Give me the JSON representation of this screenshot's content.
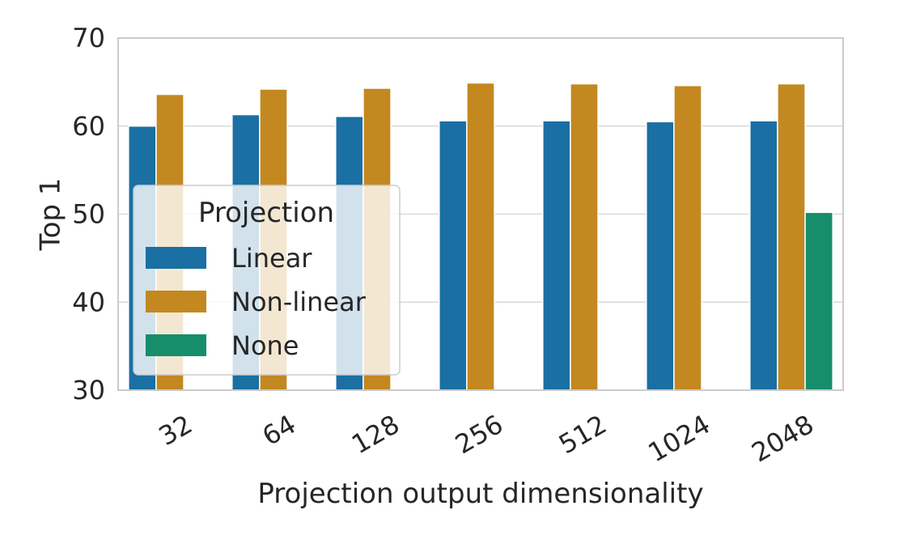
{
  "chart_data": {
    "type": "bar",
    "title": "",
    "xlabel": "Projection output dimensionality",
    "ylabel": "Top 1",
    "categories": [
      "32",
      "64",
      "128",
      "256",
      "512",
      "1024",
      "2048"
    ],
    "ylim": [
      30,
      70
    ],
    "yticks": [
      30,
      40,
      50,
      60,
      70
    ],
    "grid": "y",
    "legend": {
      "title": "Projection",
      "placement": "center-left",
      "entries": [
        "Linear",
        "Non-linear",
        "None"
      ]
    },
    "series": [
      {
        "name": "Linear",
        "color": "#1a6fa3",
        "values": [
          60.0,
          61.3,
          61.1,
          60.6,
          60.6,
          60.5,
          60.6
        ]
      },
      {
        "name": "Non-linear",
        "color": "#c38820",
        "values": [
          63.6,
          64.2,
          64.3,
          64.9,
          64.8,
          64.6,
          64.8
        ]
      },
      {
        "name": "None",
        "color": "#168d6b",
        "values": [
          null,
          null,
          null,
          null,
          null,
          null,
          50.2
        ]
      }
    ]
  }
}
